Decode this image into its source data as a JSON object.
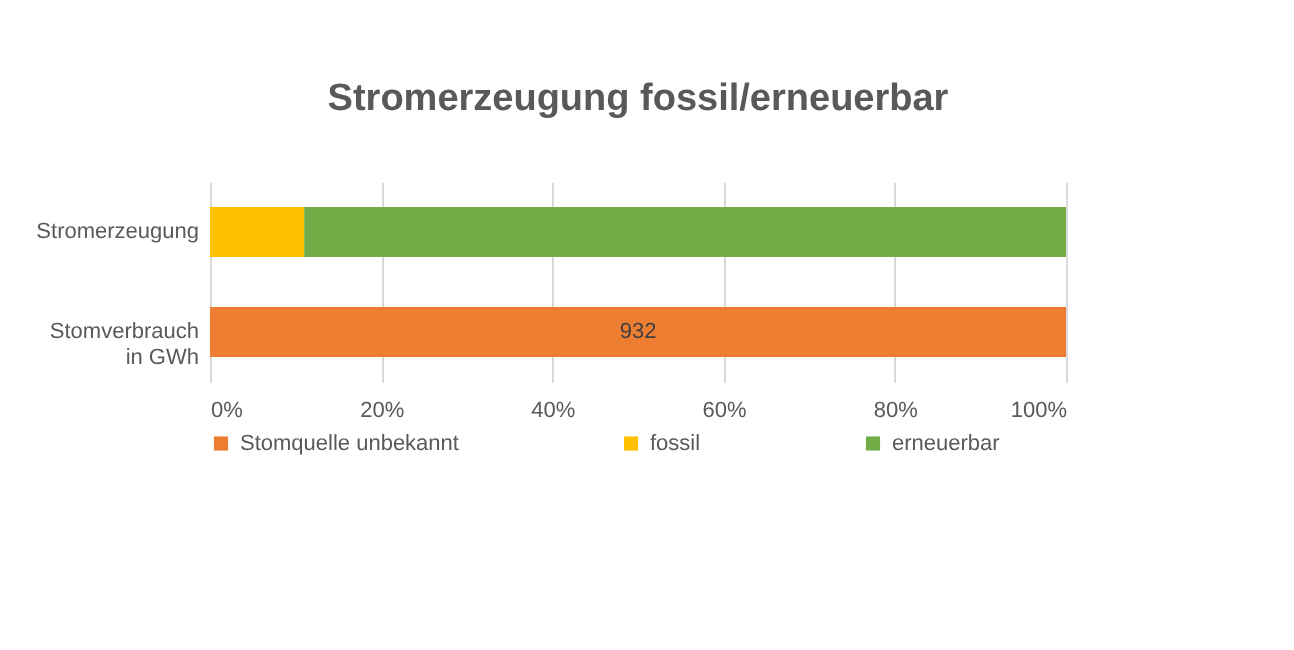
{
  "chart_data": {
    "type": "bar",
    "orientation": "horizontal",
    "stacked": true,
    "title": "Stromerzeugung fossil/erneuerbar",
    "categories": [
      "Stromerzeugung",
      "Stomverbrauch in GWh"
    ],
    "series": [
      {
        "name": "Stomquelle unbekannt",
        "color": "#ed7d31",
        "values": [
          null,
          100
        ]
      },
      {
        "name": "fossil",
        "color": "#ffc000",
        "values": [
          11,
          null
        ]
      },
      {
        "name": "erneuerbar",
        "color": "#70ad47",
        "values": [
          89,
          null
        ]
      }
    ],
    "xlim": [
      0,
      100
    ],
    "xticks": [
      {
        "value": 0,
        "label": "0%"
      },
      {
        "value": 20,
        "label": "20%"
      },
      {
        "value": 40,
        "label": "40%"
      },
      {
        "value": 60,
        "label": "60%"
      },
      {
        "value": 80,
        "label": "80%"
      },
      {
        "value": 100,
        "label": "100%"
      }
    ],
    "annotations": [
      "932"
    ],
    "grid": "x",
    "legend": "bottom"
  }
}
